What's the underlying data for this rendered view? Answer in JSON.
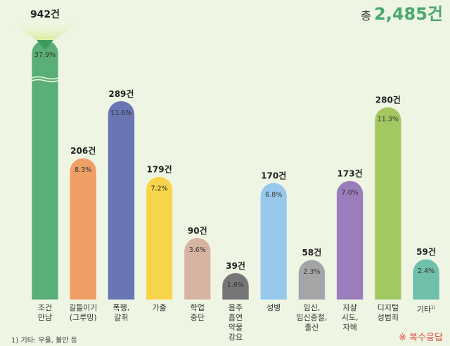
{
  "total": {
    "prefix": "총",
    "value": "2,485건"
  },
  "chart_data": {
    "type": "bar",
    "categories": [
      "조건\n만남",
      "길들이기\n(그루밍)",
      "폭행,\n갈취",
      "가출",
      "학업\n중단",
      "음주\n흡연\n약물\n강요",
      "성병",
      "임신,\n임신중절,\n출산",
      "자살\n시도,\n자해",
      "디지털\n성범죄",
      "기타"
    ],
    "values": [
      942,
      206,
      289,
      179,
      90,
      39,
      170,
      58,
      173,
      280,
      59
    ],
    "value_labels": [
      "942건",
      "206건",
      "289건",
      "179건",
      "90건",
      "39건",
      "170건",
      "58건",
      "173건",
      "280건",
      "59건"
    ],
    "percent_labels": [
      "37.9%",
      "8.3%",
      "11.6%",
      "7.2%",
      "3.6%",
      "1.6%",
      "6.8%",
      "2.3%",
      "7.0%",
      "11.3%",
      "2.4%"
    ],
    "colors": [
      "#5aaf78",
      "#ef9f66",
      "#6a76b4",
      "#f7d54a",
      "#d7b4a2",
      "#767676",
      "#98c8ec",
      "#a5a5a7",
      "#9a7dbb",
      "#a3c862",
      "#6fbfaa"
    ],
    "broken_axis_bar": "조건\n만남",
    "footnote_marker": "1)",
    "grid": false,
    "legend": "none"
  },
  "footnote": "1) 기타: 우울, 불안 등",
  "note": "※ 복수응답"
}
